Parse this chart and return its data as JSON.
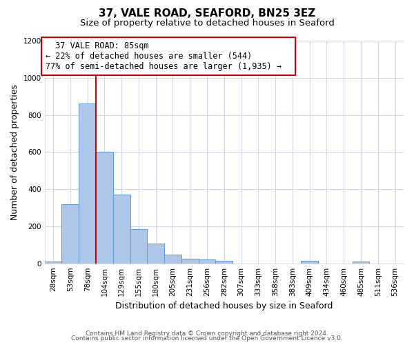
{
  "title": "37, VALE ROAD, SEAFORD, BN25 3EZ",
  "subtitle": "Size of property relative to detached houses in Seaford",
  "xlabel": "Distribution of detached houses by size in Seaford",
  "ylabel": "Number of detached properties",
  "bar_labels": [
    "28sqm",
    "53sqm",
    "78sqm",
    "104sqm",
    "129sqm",
    "155sqm",
    "180sqm",
    "205sqm",
    "231sqm",
    "256sqm",
    "282sqm",
    "307sqm",
    "333sqm",
    "358sqm",
    "383sqm",
    "409sqm",
    "434sqm",
    "460sqm",
    "485sqm",
    "511sqm",
    "536sqm"
  ],
  "bar_heights": [
    10,
    320,
    860,
    600,
    370,
    185,
    105,
    47,
    25,
    20,
    15,
    0,
    0,
    0,
    0,
    12,
    0,
    0,
    10,
    0,
    0
  ],
  "bar_color": "#aec6e8",
  "bar_edge_color": "#5b9bd5",
  "bar_width": 1.0,
  "vline_x": 2.48,
  "vline_color": "#cc0000",
  "annotation_title": "37 VALE ROAD: 85sqm",
  "annotation_line1": "← 22% of detached houses are smaller (544)",
  "annotation_line2": "77% of semi-detached houses are larger (1,935) →",
  "annotation_box_color": "#ffffff",
  "annotation_box_edge_color": "#cc0000",
  "ylim": [
    0,
    1200
  ],
  "yticks": [
    0,
    200,
    400,
    600,
    800,
    1000,
    1200
  ],
  "footer1": "Contains HM Land Registry data © Crown copyright and database right 2024.",
  "footer2": "Contains public sector information licensed under the Open Government Licence v3.0.",
  "bg_color": "#ffffff",
  "grid_color": "#d0d8e8",
  "title_fontsize": 11,
  "subtitle_fontsize": 9.5,
  "label_fontsize": 9,
  "tick_fontsize": 7.5,
  "annotation_fontsize": 8.5,
  "footer_fontsize": 6.5
}
